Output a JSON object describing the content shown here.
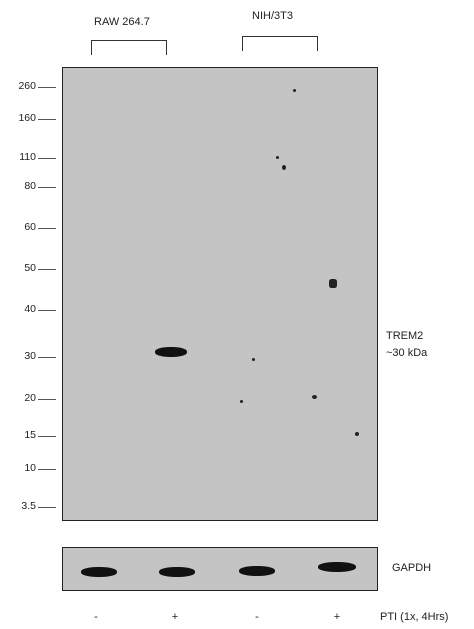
{
  "cell_lines": [
    {
      "label": "RAW 264.7"
    },
    {
      "label": "NIH/3T3"
    }
  ],
  "mw_markers": [
    "260",
    "160",
    "110",
    "80",
    "60",
    "50",
    "40",
    "30",
    "20",
    "15",
    "10",
    "3.5"
  ],
  "target_label": {
    "line1": "TREM2",
    "line2": "~30 kDa"
  },
  "loading_control": "GAPDH",
  "treatment": {
    "label": "PTI (1x, 4Hrs)",
    "lanes": [
      "-",
      "+",
      "-",
      "+"
    ]
  },
  "colors": {
    "membrane": "#c4c4c4",
    "band": "#111111"
  }
}
